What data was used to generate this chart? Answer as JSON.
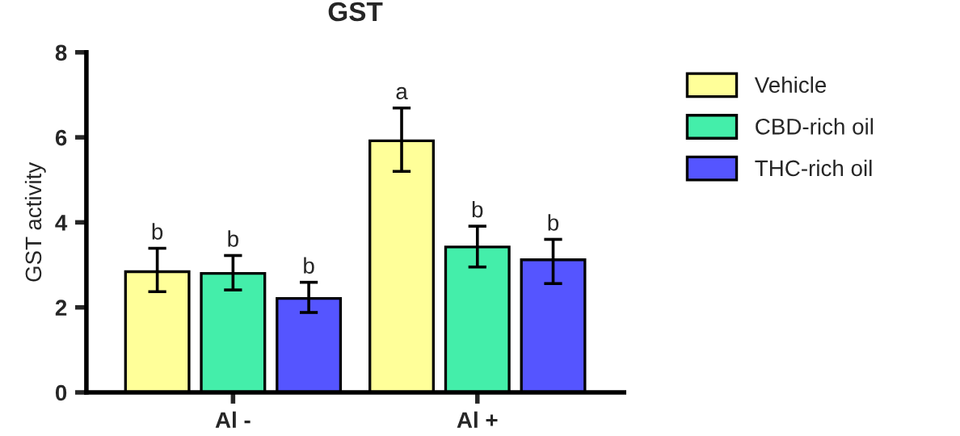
{
  "chart_data": {
    "type": "bar",
    "title": "GST",
    "ylabel": "GST activity",
    "categories": [
      "Al -",
      "Al +"
    ],
    "series": [
      {
        "name": "Vehicle",
        "color": "#ffff99",
        "values": [
          2.84,
          5.92
        ],
        "errors": [
          [
            2.37,
            3.39
          ],
          [
            5.2,
            6.69
          ]
        ],
        "value_labels": [
          "b",
          "a"
        ]
      },
      {
        "name": "CBD-rich oil",
        "color": "#44eeaa",
        "values": [
          2.8,
          3.42
        ],
        "errors": [
          [
            2.41,
            3.22
          ],
          [
            2.95,
            3.91
          ]
        ],
        "value_labels": [
          "b",
          "b"
        ]
      },
      {
        "name": "THC-rich oil",
        "color": "#5555ff",
        "values": [
          2.21,
          3.12
        ],
        "errors": [
          [
            1.88,
            2.59
          ],
          [
            2.56,
            3.6
          ]
        ],
        "value_labels": [
          "b",
          "b"
        ]
      }
    ],
    "ylim": [
      0,
      8
    ],
    "yticks": [
      0,
      2,
      4,
      6,
      8
    ],
    "grid": false,
    "legend": "right"
  }
}
